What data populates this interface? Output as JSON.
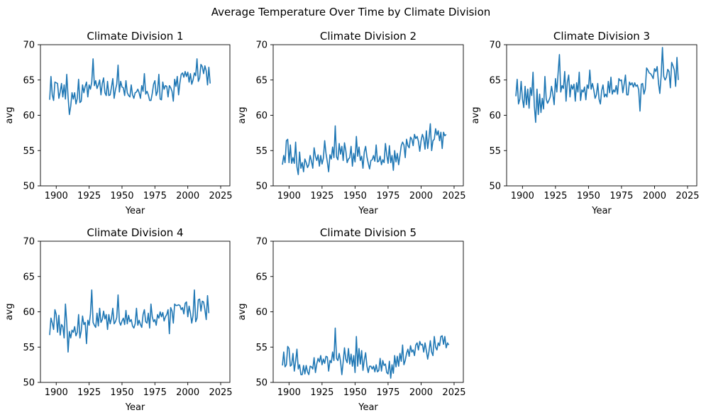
{
  "figure": {
    "title": "Average Temperature Over Time by Climate Division"
  },
  "colors": {
    "line": "#1f77b4",
    "axis": "#000000",
    "background": "#ffffff"
  },
  "chart_data": [
    {
      "type": "line",
      "title": "Climate Division 1",
      "xlabel": "Year",
      "ylabel": "avg",
      "xlim": [
        1888,
        2032
      ],
      "ylim": [
        50,
        70
      ],
      "xticks": [
        1900,
        1925,
        1950,
        1975,
        2000,
        2025
      ],
      "yticks": [
        50,
        55,
        60,
        65,
        70
      ],
      "grid": false,
      "series": [
        {
          "x_start": 1895,
          "values": [
            62.2,
            65.5,
            62.9,
            62.1,
            64.7,
            64.6,
            64.5,
            62.4,
            63.3,
            64.5,
            62.6,
            64.3,
            62.3,
            65.8,
            62.6,
            60.1,
            61.3,
            63.2,
            62.3,
            63.2,
            61.6,
            62.4,
            65.1,
            61.8,
            62.0,
            64.3,
            63.2,
            64.1,
            64.7,
            62.6,
            64.3,
            63.7,
            64.7,
            68.0,
            64.2,
            64.9,
            63.8,
            64.3,
            65.0,
            62.9,
            64.5,
            65.3,
            63.2,
            62.8,
            64.8,
            62.8,
            62.9,
            64.0,
            65.2,
            62.4,
            63.6,
            64.4,
            67.1,
            63.3,
            64.8,
            64.0,
            63.9,
            62.8,
            64.9,
            63.2,
            62.8,
            62.6,
            64.3,
            62.9,
            62.4,
            63.2,
            63.3,
            63.7,
            63.2,
            62.4,
            64.2,
            63.4,
            65.9,
            63.0,
            63.4,
            62.9,
            62.1,
            62.1,
            63.1,
            64.4,
            64.9,
            62.8,
            63.4,
            65.8,
            62.3,
            62.2,
            64.7,
            63.7,
            64.2,
            64.1,
            62.6,
            64.2,
            63.9,
            63.4,
            62.0,
            65.1,
            64.1,
            65.5,
            62.9,
            64.6,
            65.8,
            66.0,
            65.4,
            66.2,
            65.5,
            66.1,
            64.7,
            65.9,
            64.4,
            65.0,
            66.0,
            65.6,
            68.0,
            64.8,
            65.3,
            67.2,
            66.9,
            65.9,
            67.0,
            66.3,
            64.3,
            66.8,
            64.5
          ]
        }
      ]
    },
    {
      "type": "line",
      "title": "Climate Division 2",
      "xlabel": "Year",
      "ylabel": "avg",
      "xlim": [
        1888,
        2032
      ],
      "ylim": [
        50,
        70
      ],
      "xticks": [
        1900,
        1925,
        1950,
        1975,
        2000,
        2025
      ],
      "yticks": [
        50,
        55,
        60,
        65,
        70
      ],
      "grid": false,
      "series": [
        {
          "x_start": 1895,
          "values": [
            53.0,
            54.3,
            53.3,
            56.4,
            56.6,
            53.3,
            55.8,
            53.2,
            54.0,
            53.2,
            56.2,
            52.7,
            51.6,
            54.8,
            52.5,
            53.3,
            52.0,
            53.8,
            53.3,
            52.6,
            53.0,
            54.3,
            53.5,
            52.5,
            55.4,
            54.2,
            53.6,
            54.4,
            52.8,
            54.3,
            53.1,
            53.9,
            56.4,
            54.6,
            53.4,
            52.0,
            54.4,
            53.8,
            55.5,
            54.0,
            58.5,
            54.1,
            53.7,
            56.0,
            54.5,
            55.6,
            53.6,
            56.1,
            55.0,
            53.3,
            53.8,
            54.0,
            55.6,
            52.8,
            54.6,
            53.4,
            57.0,
            54.2,
            55.5,
            53.6,
            54.2,
            52.5,
            54.8,
            55.6,
            54.1,
            53.2,
            52.4,
            53.6,
            53.7,
            54.3,
            53.5,
            55.8,
            53.4,
            53.5,
            54.2,
            53.0,
            53.7,
            53.3,
            56.0,
            54.4,
            53.2,
            55.7,
            53.3,
            54.3,
            52.2,
            55.0,
            53.4,
            54.6,
            53.0,
            54.3,
            55.7,
            56.2,
            55.8,
            54.0,
            56.6,
            55.7,
            55.4,
            56.9,
            56.6,
            55.7,
            57.3,
            56.7,
            57.0,
            56.3,
            54.9,
            56.4,
            57.3,
            56.7,
            55.2,
            57.8,
            55.3,
            56.8,
            58.8,
            55.0,
            56.4,
            56.6,
            58.1,
            57.2,
            57.8,
            56.4,
            57.6,
            55.3,
            57.6,
            57.1,
            57.3
          ]
        }
      ]
    },
    {
      "type": "line",
      "title": "Climate Division 3",
      "xlabel": "Year",
      "ylabel": "avg",
      "xlim": [
        1888,
        2032
      ],
      "ylim": [
        50,
        70
      ],
      "xticks": [
        1900,
        1925,
        1950,
        1975,
        2000,
        2025
      ],
      "yticks": [
        50,
        55,
        60,
        65,
        70
      ],
      "grid": false,
      "series": [
        {
          "x_start": 1895,
          "values": [
            62.7,
            65.1,
            61.6,
            62.3,
            64.8,
            62.3,
            61.1,
            64.1,
            61.5,
            63.7,
            61.0,
            63.9,
            62.8,
            66.1,
            61.3,
            59.0,
            63.7,
            60.1,
            63.0,
            60.4,
            62.4,
            60.9,
            65.5,
            62.3,
            61.7,
            62.1,
            62.6,
            64.1,
            63.0,
            61.5,
            65.2,
            63.3,
            66.0,
            68.6,
            63.3,
            64.2,
            63.8,
            66.2,
            62.0,
            64.7,
            65.7,
            62.6,
            64.3,
            63.7,
            64.4,
            62.0,
            64.6,
            63.3,
            66.1,
            62.1,
            63.6,
            63.3,
            64.0,
            62.2,
            64.3,
            63.8,
            66.4,
            63.7,
            64.5,
            63.6,
            62.4,
            62.9,
            64.5,
            62.3,
            61.6,
            63.5,
            64.3,
            62.6,
            63.0,
            62.6,
            64.8,
            63.2,
            65.4,
            63.0,
            63.6,
            63.3,
            64.2,
            63.0,
            65.2,
            64.9,
            65.0,
            63.2,
            64.4,
            65.7,
            62.9,
            62.9,
            64.7,
            64.3,
            64.6,
            64.0,
            64.6,
            64.1,
            64.3,
            63.6,
            60.6,
            64.4,
            64.5,
            63.0,
            63.7,
            66.7,
            66.4,
            66.0,
            65.9,
            65.6,
            65.2,
            66.6,
            66.2,
            66.9,
            64.6,
            63.1,
            65.5,
            69.6,
            65.5,
            65.0,
            65.4,
            66.5,
            66.2,
            63.9,
            67.5,
            67.0,
            66.4,
            64.1,
            68.2,
            65.0
          ]
        }
      ]
    },
    {
      "type": "line",
      "title": "Climate Division 4",
      "xlabel": "Year",
      "ylabel": "avg",
      "xlim": [
        1888,
        2032
      ],
      "ylim": [
        50,
        70
      ],
      "xticks": [
        1900,
        1925,
        1950,
        1975,
        2000,
        2025
      ],
      "yticks": [
        50,
        55,
        60,
        65,
        70
      ],
      "grid": false,
      "series": [
        {
          "x_start": 1895,
          "values": [
            56.7,
            59.1,
            58.4,
            57.5,
            60.3,
            59.6,
            57.1,
            59.5,
            56.7,
            58.2,
            57.9,
            56.3,
            61.1,
            58.4,
            54.3,
            57.2,
            56.3,
            57.4,
            57.1,
            57.9,
            56.6,
            57.1,
            59.6,
            56.3,
            57.3,
            59.4,
            58.2,
            58.5,
            55.5,
            58.8,
            58.1,
            59.7,
            63.1,
            58.5,
            58.1,
            57.8,
            59.8,
            58.0,
            60.5,
            58.5,
            58.9,
            60.1,
            59.0,
            59.6,
            57.5,
            59.6,
            58.3,
            59.1,
            60.5,
            58.3,
            58.6,
            59.2,
            62.4,
            58.6,
            58.1,
            58.7,
            59.1,
            58.2,
            60.2,
            58.3,
            59.5,
            58.6,
            58.9,
            58.0,
            57.7,
            58.3,
            60.5,
            58.1,
            58.8,
            58.2,
            57.8,
            59.6,
            60.3,
            58.6,
            58.4,
            59.8,
            57.7,
            61.1,
            59.3,
            58.6,
            58.9,
            58.1,
            59.6,
            59.1,
            60.0,
            59.3,
            59.9,
            58.7,
            59.3,
            59.6,
            60.3,
            56.9,
            60.6,
            60.1,
            58.4,
            61.1,
            60.9,
            60.9,
            61.0,
            60.9,
            60.3,
            60.6,
            59.7,
            61.2,
            61.4,
            59.3,
            60.8,
            59.8,
            58.4,
            59.5,
            63.1,
            58.6,
            59.1,
            61.7,
            61.8,
            60.1,
            61.5,
            61.4,
            60.3,
            58.9,
            62.3,
            59.8
          ]
        }
      ]
    },
    {
      "type": "line",
      "title": "Climate Division 5",
      "xlabel": "Year",
      "ylabel": "avg",
      "xlim": [
        1888,
        2032
      ],
      "ylim": [
        50,
        70
      ],
      "xticks": [
        1900,
        1925,
        1950,
        1975,
        2000,
        2025
      ],
      "yticks": [
        50,
        55,
        60,
        65,
        70
      ],
      "grid": false,
      "series": [
        {
          "x_start": 1895,
          "values": [
            52.4,
            54.3,
            52.2,
            52.5,
            55.1,
            54.8,
            52.3,
            52.5,
            54.1,
            51.6,
            53.0,
            54.7,
            51.9,
            52.5,
            51.1,
            51.1,
            52.4,
            51.2,
            52.4,
            51.5,
            51.1,
            52.3,
            52.2,
            51.9,
            53.5,
            51.4,
            52.6,
            53.4,
            52.9,
            53.8,
            52.5,
            53.3,
            52.7,
            53.7,
            53.6,
            51.6,
            53.1,
            52.8,
            54.3,
            53.1,
            57.7,
            53.4,
            53.1,
            54.1,
            53.0,
            51.1,
            52.9,
            54.9,
            53.3,
            52.8,
            54.8,
            52.6,
            54.0,
            52.3,
            53.8,
            51.4,
            56.5,
            52.3,
            54.8,
            52.6,
            54.5,
            51.7,
            53.2,
            54.2,
            52.3,
            51.4,
            52.3,
            52.3,
            51.9,
            52.3,
            51.5,
            52.5,
            51.5,
            51.7,
            53.4,
            51.6,
            53.1,
            52.4,
            52.6,
            51.4,
            51.2,
            53.0,
            50.6,
            52.5,
            51.3,
            53.8,
            52.2,
            53.7,
            52.3,
            54.1,
            53.0,
            55.3,
            52.5,
            53.1,
            54.1,
            54.7,
            53.7,
            55.2,
            54.3,
            54.6,
            53.8,
            55.3,
            55.6,
            54.6,
            55.8,
            55.3,
            55.4,
            54.3,
            55.6,
            54.5,
            53.3,
            54.4,
            55.9,
            54.3,
            53.8,
            56.5,
            55.0,
            54.6,
            55.6,
            55.2,
            56.5,
            56.6,
            55.4,
            56.5,
            54.9,
            55.6,
            55.3
          ]
        }
      ]
    }
  ]
}
